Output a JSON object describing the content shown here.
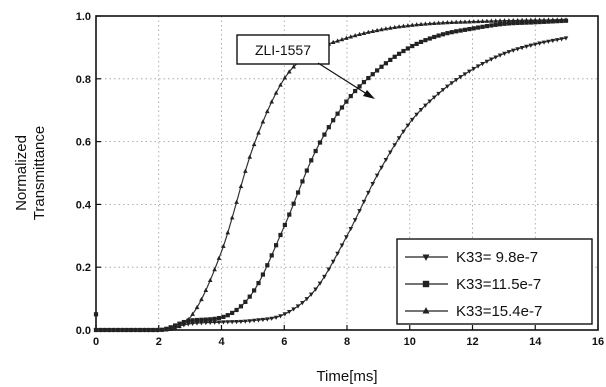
{
  "chart_data": {
    "type": "scatter",
    "xlabel": "Time[ms]",
    "ylabel_lines": [
      "Normalized",
      "Transmittance"
    ],
    "xlim": [
      0,
      16
    ],
    "ylim": [
      0.0,
      1.0
    ],
    "xticks": [
      "0",
      "2",
      "4",
      "6",
      "8",
      "10",
      "12",
      "14",
      "16"
    ],
    "yticks": [
      "0.0",
      "0.2",
      "0.4",
      "0.6",
      "0.8",
      "1.0"
    ],
    "grid": true,
    "legend_position": "bottom-right",
    "annotation": "ZLI-1557",
    "series": [
      {
        "name": "K33=  9.8e-7",
        "marker": "triangle-down",
        "x": [
          0,
          2,
          3,
          4,
          5,
          6,
          7,
          8,
          9,
          10,
          11,
          12,
          13,
          14,
          15
        ],
        "y": [
          0.0,
          0.0,
          0.02,
          0.025,
          0.03,
          0.05,
          0.13,
          0.3,
          0.5,
          0.66,
          0.76,
          0.83,
          0.88,
          0.91,
          0.93
        ]
      },
      {
        "name": "K33=11.5e-7",
        "marker": "square",
        "x": [
          0,
          2,
          3,
          4,
          5,
          6,
          7,
          8,
          9,
          10,
          11,
          12,
          13,
          14,
          15
        ],
        "y": [
          0.0,
          0.0,
          0.03,
          0.04,
          0.12,
          0.33,
          0.57,
          0.73,
          0.83,
          0.9,
          0.94,
          0.96,
          0.975,
          0.98,
          0.985
        ]
      },
      {
        "name": "K33=15.4e-7",
        "marker": "triangle-up",
        "x": [
          0,
          2,
          3,
          4,
          5,
          6,
          7,
          8,
          9,
          10,
          11,
          12,
          13,
          14,
          15
        ],
        "y": [
          0.0,
          0.0,
          0.04,
          0.25,
          0.58,
          0.8,
          0.89,
          0.93,
          0.955,
          0.97,
          0.978,
          0.982,
          0.985,
          0.987,
          0.988
        ]
      }
    ]
  }
}
